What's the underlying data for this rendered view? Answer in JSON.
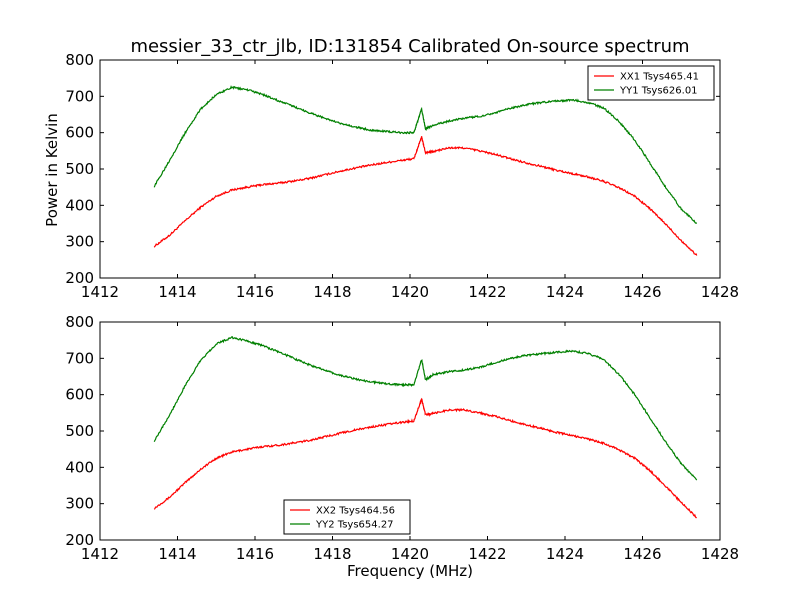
{
  "chart_data": {
    "title": "messier_33_ctr_jlb, ID:131854 Calibrated On-source spectrum",
    "xlabel": "Frequency (MHz)",
    "ylabel": "Power in Kelvin",
    "xlim": [
      1412,
      1428
    ],
    "ylim": [
      200,
      800
    ],
    "xticks": [
      "1412",
      "1414",
      "1416",
      "1418",
      "1420",
      "1422",
      "1424",
      "1426",
      "1428"
    ],
    "yticks": [
      "200",
      "300",
      "400",
      "500",
      "600",
      "700",
      "800"
    ],
    "colors": {
      "red": "#ff0000",
      "green": "#008000"
    },
    "panels": [
      {
        "type": "line",
        "legend_position": "top-right",
        "series": [
          {
            "name": "XX1 Tsys465.41",
            "color": "#ff0000",
            "x": [
              1413.4,
              1413.8,
              1414.2,
              1414.6,
              1415.0,
              1415.4,
              1415.8,
              1416.2,
              1416.6,
              1417.0,
              1417.4,
              1417.8,
              1418.2,
              1418.6,
              1419.0,
              1419.4,
              1419.8,
              1420.1,
              1420.3,
              1420.4,
              1420.6,
              1421.0,
              1421.4,
              1421.8,
              1422.2,
              1422.6,
              1423.0,
              1423.4,
              1423.8,
              1424.2,
              1424.6,
              1425.0,
              1425.4,
              1425.8,
              1426.2,
              1426.6,
              1427.0,
              1427.4
            ],
            "y": [
              287,
              318,
              358,
              395,
              425,
              442,
              450,
              457,
              461,
              467,
              474,
              484,
              494,
              503,
              511,
              518,
              524,
              528,
              588,
              545,
              548,
              558,
              558,
              550,
              540,
              528,
              517,
              507,
              496,
              487,
              478,
              466,
              448,
              425,
              390,
              348,
              303,
              262
            ]
          },
          {
            "name": "YY1 Tsys626.01",
            "color": "#008000",
            "x": [
              1413.4,
              1413.8,
              1414.2,
              1414.6,
              1415.0,
              1415.4,
              1415.8,
              1416.2,
              1416.6,
              1417.0,
              1417.4,
              1417.8,
              1418.2,
              1418.6,
              1419.0,
              1419.4,
              1419.8,
              1420.1,
              1420.3,
              1420.4,
              1420.6,
              1421.0,
              1421.4,
              1421.8,
              1422.2,
              1422.6,
              1423.0,
              1423.4,
              1423.8,
              1424.2,
              1424.6,
              1425.0,
              1425.4,
              1425.8,
              1426.2,
              1426.6,
              1427.0,
              1427.4
            ],
            "y": [
              452,
              525,
              600,
              665,
              705,
              725,
              718,
              705,
              688,
              672,
              655,
              640,
              625,
              615,
              607,
              603,
              600,
              600,
              665,
              610,
              620,
              632,
              640,
              645,
              655,
              667,
              677,
              683,
              687,
              690,
              683,
              668,
              630,
              580,
              515,
              450,
              390,
              350
            ]
          }
        ]
      },
      {
        "type": "line",
        "legend_position": "lower center",
        "series": [
          {
            "name": "XX2 Tsys464.56",
            "color": "#ff0000",
            "x": [
              1413.4,
              1413.8,
              1414.2,
              1414.6,
              1415.0,
              1415.4,
              1415.8,
              1416.2,
              1416.6,
              1417.0,
              1417.4,
              1417.8,
              1418.2,
              1418.6,
              1419.0,
              1419.4,
              1419.8,
              1420.1,
              1420.3,
              1420.4,
              1420.6,
              1421.0,
              1421.4,
              1421.8,
              1422.2,
              1422.6,
              1423.0,
              1423.4,
              1423.8,
              1424.2,
              1424.6,
              1425.0,
              1425.4,
              1425.8,
              1426.2,
              1426.6,
              1427.0,
              1427.4
            ],
            "y": [
              287,
              318,
              358,
              395,
              425,
              442,
              450,
              457,
              461,
              467,
              474,
              484,
              494,
              503,
              511,
              518,
              524,
              528,
              588,
              545,
              548,
              558,
              558,
              550,
              540,
              528,
              517,
              507,
              496,
              487,
              478,
              466,
              448,
              425,
              390,
              348,
              303,
              262
            ]
          },
          {
            "name": "YY2 Tsys654.27",
            "color": "#008000",
            "x": [
              1413.4,
              1413.8,
              1414.2,
              1414.6,
              1415.0,
              1415.4,
              1415.8,
              1416.2,
              1416.6,
              1417.0,
              1417.4,
              1417.8,
              1418.2,
              1418.6,
              1419.0,
              1419.4,
              1419.8,
              1420.1,
              1420.3,
              1420.4,
              1420.6,
              1421.0,
              1421.4,
              1421.8,
              1422.2,
              1422.6,
              1423.0,
              1423.4,
              1423.8,
              1424.2,
              1424.6,
              1425.0,
              1425.4,
              1425.8,
              1426.2,
              1426.6,
              1427.0,
              1427.4
            ],
            "y": [
              473,
              545,
              625,
              695,
              740,
              757,
              748,
              735,
              718,
              700,
              682,
              667,
              653,
              643,
              635,
              630,
              627,
              627,
              697,
              640,
              655,
              663,
              668,
              675,
              688,
              700,
              708,
              713,
              717,
              720,
              713,
              697,
              655,
              600,
              535,
              470,
              410,
              365
            ]
          }
        ]
      }
    ]
  }
}
